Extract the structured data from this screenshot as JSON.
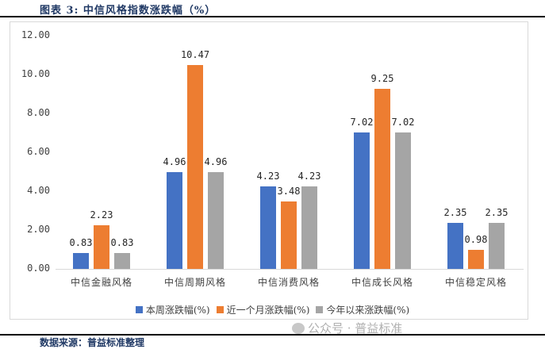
{
  "header": {
    "title": "图表 3:   中信风格指数涨跌幅（%）"
  },
  "footer": {
    "source": "数据来源：普益标准整理",
    "watermark": "公众号 · 普益标准"
  },
  "chart_data": {
    "type": "bar",
    "title": "中信风格指数涨跌幅（%）",
    "xlabel": "",
    "ylabel": "",
    "ylim": [
      0,
      12
    ],
    "yticks": [
      "0.00",
      "2.00",
      "4.00",
      "6.00",
      "8.00",
      "10.00",
      "12.00"
    ],
    "grid": false,
    "legend_position": "bottom",
    "categories": [
      "中信金融风格",
      "中信周期风格",
      "中信消费风格",
      "中信成长风格",
      "中信稳定风格"
    ],
    "series": [
      {
        "name": "本周涨跌幅(%)",
        "color": "#4472c4",
        "values": [
          0.83,
          4.96,
          4.23,
          7.02,
          2.35
        ],
        "labels": [
          "0.83",
          "4.96",
          "4.23",
          "7.02",
          "2.35"
        ]
      },
      {
        "name": "近一个月涨跌幅(%)",
        "color": "#ed7d31",
        "values": [
          2.23,
          10.47,
          3.48,
          9.25,
          0.98
        ],
        "labels": [
          "2.23",
          "10.47",
          "3.48",
          "9.25",
          "0.98"
        ]
      },
      {
        "name": "今年以来涨跌幅(%)",
        "color": "#a5a5a5",
        "values": [
          0.83,
          4.96,
          4.23,
          7.02,
          2.35
        ],
        "labels": [
          "0.83",
          "4.96",
          "4.23",
          "7.02",
          "2.35"
        ]
      }
    ]
  }
}
